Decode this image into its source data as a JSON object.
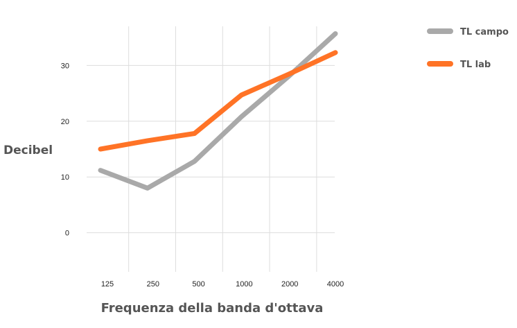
{
  "chart_data": {
    "type": "line",
    "categories": [
      "125",
      "250",
      "500",
      "1000",
      "2000",
      "4000"
    ],
    "series": [
      {
        "name": "TL campo",
        "color": "#a9a9a9",
        "values": [
          11.2,
          8.0,
          12.8,
          20.8,
          28.0,
          35.7
        ]
      },
      {
        "name": "TL lab",
        "color": "#ff7326",
        "values": [
          15.0,
          16.5,
          17.8,
          24.7,
          28.4,
          32.3
        ]
      }
    ],
    "title": "",
    "xlabel": "Frequenza della banda d'ottava",
    "ylabel": "Decibel",
    "yticks": [
      "0",
      "10",
      "20",
      "30"
    ],
    "ylim": [
      -7,
      37
    ],
    "grid": true,
    "legend_position": "right"
  }
}
